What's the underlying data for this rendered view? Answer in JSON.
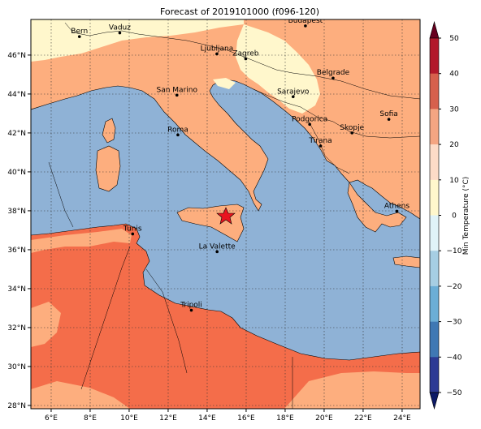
{
  "title": "Forecast of 2019101000 (f096-120)",
  "map": {
    "x_ticks": [
      "6°E",
      "8°E",
      "10°E",
      "12°E",
      "14°E",
      "16°E",
      "18°E",
      "20°E",
      "22°E",
      "24°E"
    ],
    "y_ticks": [
      "28°N",
      "30°N",
      "32°N",
      "34°N",
      "36°N",
      "38°N",
      "40°N",
      "42°N",
      "44°N",
      "46°N"
    ],
    "colors": {
      "sea": "#8fb2d6",
      "band_0_10": "#fff7cc",
      "band_10_20": "#fdae7e",
      "band_20_30": "#f46d4a"
    },
    "marker": {
      "symbol": "star",
      "color": "#e8141f",
      "location": "Sicily"
    },
    "cities": [
      {
        "name": "Bern",
        "lon": 7.45,
        "lat": 46.95
      },
      {
        "name": "Vaduz",
        "lon": 9.52,
        "lat": 47.14
      },
      {
        "name": "Budapest",
        "lon": 19.04,
        "lat": 47.5
      },
      {
        "name": "Ljubljana",
        "lon": 14.5,
        "lat": 46.06
      },
      {
        "name": "Zagreb",
        "lon": 15.98,
        "lat": 45.81
      },
      {
        "name": "San Marino",
        "lon": 12.45,
        "lat": 43.94
      },
      {
        "name": "Belgrade",
        "lon": 20.46,
        "lat": 44.82
      },
      {
        "name": "Sarajevo",
        "lon": 18.41,
        "lat": 43.86
      },
      {
        "name": "Sofia",
        "lon": 23.32,
        "lat": 42.7
      },
      {
        "name": "Roma",
        "lon": 12.5,
        "lat": 41.9
      },
      {
        "name": "Podgorica",
        "lon": 19.26,
        "lat": 42.44
      },
      {
        "name": "Skopje",
        "lon": 21.43,
        "lat": 42.0
      },
      {
        "name": "Tirana",
        "lon": 19.82,
        "lat": 41.33
      },
      {
        "name": "Athens",
        "lon": 23.73,
        "lat": 37.98
      },
      {
        "name": "Tunis",
        "lon": 10.18,
        "lat": 36.81
      },
      {
        "name": "La Valette",
        "lon": 14.51,
        "lat": 35.9
      },
      {
        "name": "Tripoli",
        "lon": 13.19,
        "lat": 32.89
      }
    ]
  },
  "colorbar": {
    "label": "Min Temperature (°C)",
    "ticks": [
      "50",
      "40",
      "30",
      "20",
      "10",
      "0",
      "−10",
      "−20",
      "−30",
      "−40",
      "−50"
    ],
    "levels": [
      {
        "color": "#67001f"
      },
      {
        "color": "#b2182b"
      },
      {
        "color": "#d6604d"
      },
      {
        "color": "#f4a582"
      },
      {
        "color": "#fddbc7"
      },
      {
        "color": "#fff7cc"
      },
      {
        "color": "#e0f3f8"
      },
      {
        "color": "#a6cee3"
      },
      {
        "color": "#6baed6"
      },
      {
        "color": "#3f78b4"
      },
      {
        "color": "#2c3a94"
      },
      {
        "color": "#0c1a66"
      }
    ]
  }
}
